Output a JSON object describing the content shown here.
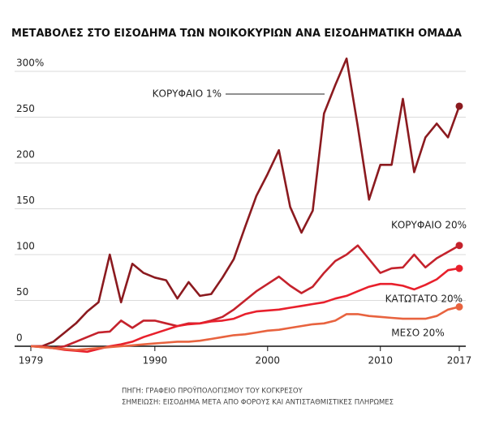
{
  "chart_data": {
    "type": "line",
    "title": "ΜΕΤΑΒΟΛΕΣ ΣΤΟ ΕΙΣΟΔΗΜΑ ΤΩΝ ΝΟΙΚΟΚΥΡΙΩΝ ΑΝΑ ΕΙΣΟΔΗΜΑΤΙΚΗ ΟΜΑΔΑ",
    "x": [
      1979,
      1980,
      1981,
      1982,
      1983,
      1984,
      1985,
      1986,
      1987,
      1988,
      1989,
      1990,
      1991,
      1992,
      1993,
      1994,
      1995,
      1996,
      1997,
      1998,
      1999,
      2000,
      2001,
      2002,
      2003,
      2004,
      2005,
      2006,
      2007,
      2008,
      2009,
      2010,
      2011,
      2012,
      2013,
      2014,
      2015,
      2016,
      2017
    ],
    "series": [
      {
        "name": "ΚΟΡΥΦΑΙΟ 1%",
        "color": "#8b1a1f",
        "values": [
          0,
          0,
          5,
          15,
          25,
          38,
          48,
          100,
          48,
          90,
          80,
          75,
          72,
          52,
          70,
          55,
          57,
          75,
          95,
          130,
          164,
          188,
          214,
          152,
          124,
          148,
          254,
          285,
          314,
          240,
          160,
          198,
          198,
          270,
          190,
          228,
          243,
          228,
          262
        ]
      },
      {
        "name": "ΚΟΡΥΦΑΙΟ 20%",
        "color": "#c4222c",
        "values": [
          0,
          0,
          -2,
          0,
          5,
          10,
          15,
          16,
          28,
          20,
          28,
          28,
          25,
          22,
          25,
          25,
          28,
          32,
          40,
          50,
          60,
          68,
          76,
          66,
          58,
          65,
          80,
          93,
          100,
          110,
          95,
          80,
          85,
          86,
          100,
          86,
          96,
          103,
          110
        ]
      },
      {
        "name": "ΚΑΤΩΤΑΤΟ 20%",
        "color": "#e8202c",
        "values": [
          0,
          -1,
          -2,
          -4,
          -5,
          -6,
          -3,
          0,
          2,
          5,
          10,
          14,
          18,
          22,
          24,
          25,
          27,
          28,
          30,
          35,
          38,
          39,
          40,
          42,
          44,
          46,
          48,
          52,
          55,
          60,
          65,
          68,
          68,
          66,
          62,
          67,
          73,
          83,
          85
        ]
      },
      {
        "name": "ΜΕΣΟ 20%",
        "color": "#e8633f",
        "values": [
          0,
          -1,
          -2,
          -3,
          -4,
          -3,
          -2,
          -1,
          0,
          1,
          2,
          3,
          4,
          5,
          5,
          6,
          8,
          10,
          12,
          13,
          15,
          17,
          18,
          20,
          22,
          24,
          25,
          28,
          35,
          35,
          33,
          32,
          31,
          30,
          30,
          30,
          33,
          40,
          43
        ]
      }
    ],
    "xlim": [
      1979,
      2017
    ],
    "xticks": [
      1979,
      1990,
      2000,
      2010,
      2017
    ],
    "ylim": [
      0,
      300
    ],
    "yticks": [
      0,
      50,
      100,
      150,
      200,
      250,
      {
        "value": 300,
        "label": "300%"
      }
    ],
    "grid": true,
    "notes": [
      "ΠΗΓΗ: ΓΡΑΦΕΙΟ ΠΡΟΫΠΟΛΟΓΙΣΜΟΥ ΤΟΥ ΚΟΓΚΡΕΣΟΥ",
      "ΣΗΜΕΙΩΣΗ: ΕΙΣΟΔΗΜΑ ΜΕΤΑ ΑΠΟ ΦΟΡΟΥΣ ΚΑΙ ΑΝΤΙΣΤΑΘΜΙΣΤΙΚΕΣ ΠΛΗΡΩΜΕΣ"
    ]
  }
}
